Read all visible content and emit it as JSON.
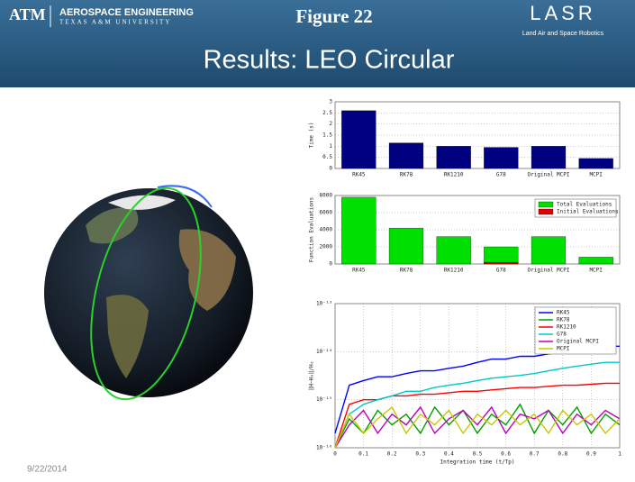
{
  "slide": {
    "logo": "ATM",
    "department": "AEROSPACE ENGINEERING",
    "university": "TEXAS A&M UNIVERSITY",
    "figure_label": "Figure 22",
    "title": "Results: LEO Circular",
    "lab_logo": "LASR",
    "lab_name": "Land Air and Space Robotics",
    "date": "9/22/2014"
  },
  "chart_data": [
    {
      "type": "bar",
      "ylabel": "Time (s)",
      "categories": [
        "RK45",
        "RK78",
        "RK1210",
        "G78",
        "Original MCPI",
        "MCPI"
      ],
      "values": [
        2.6,
        1.15,
        1.0,
        0.95,
        1.0,
        0.45
      ],
      "color": "#000080",
      "ylim": [
        0,
        3
      ],
      "yticks": [
        0,
        0.5,
        1,
        1.5,
        2,
        2.5,
        3
      ],
      "grid": true
    },
    {
      "type": "bar",
      "ylabel": "Function Evaluations",
      "categories": [
        "RK45",
        "RK78",
        "RK1210",
        "G78",
        "Original MCPI",
        "MCPI"
      ],
      "series": [
        {
          "name": "Total Evaluations",
          "color": "#00e000",
          "values": [
            7800,
            4200,
            3200,
            2000,
            3200,
            800
          ]
        },
        {
          "name": "Initial Evaluations",
          "color": "#e00000",
          "values": [
            0,
            0,
            0,
            200,
            0,
            0
          ]
        }
      ],
      "ylim": [
        0,
        8000
      ],
      "yticks": [
        0,
        2000,
        4000,
        6000,
        8000
      ],
      "grid": true,
      "legend": "top-right"
    },
    {
      "type": "line",
      "xlabel": "Integration time (t/Tp)",
      "ylabel": "‖H−H₀‖/H₀",
      "log_y": true,
      "x": [
        0,
        0.05,
        0.1,
        0.15,
        0.2,
        0.25,
        0.3,
        0.35,
        0.4,
        0.45,
        0.5,
        0.55,
        0.6,
        0.65,
        0.7,
        0.75,
        0.8,
        0.85,
        0.9,
        0.95,
        1
      ],
      "series": [
        {
          "name": "RK45",
          "color": "#0000ff",
          "values": [
            2e-16,
            2e-15,
            2.5e-15,
            3e-15,
            3e-15,
            3.5e-15,
            4e-15,
            4e-15,
            4.5e-15,
            5e-15,
            6e-15,
            7e-15,
            7e-15,
            8e-15,
            8e-15,
            9e-15,
            1e-14,
            1.1e-14,
            1.2e-14,
            1.3e-14,
            1.3e-14
          ]
        },
        {
          "name": "RK78",
          "color": "#00a000",
          "values": [
            1e-16,
            4e-16,
            2e-16,
            6e-16,
            3e-16,
            5e-16,
            2e-16,
            7e-16,
            3e-16,
            6e-16,
            2e-16,
            5e-16,
            3e-16,
            8e-16,
            2e-16,
            6e-16,
            3e-16,
            7e-16,
            2e-16,
            5e-16,
            3e-16
          ]
        },
        {
          "name": "RK1210",
          "color": "#ff0000",
          "values": [
            1e-16,
            8e-16,
            1e-15,
            1e-15,
            1.2e-15,
            1.2e-15,
            1.3e-15,
            1.3e-15,
            1.4e-15,
            1.5e-15,
            1.5e-15,
            1.6e-15,
            1.7e-15,
            1.8e-15,
            1.8e-15,
            1.9e-15,
            2e-15,
            2e-15,
            2.1e-15,
            2.2e-15,
            2.2e-15
          ]
        },
        {
          "name": "G78",
          "color": "#00c8c8",
          "values": [
            1e-16,
            5e-16,
            8e-16,
            1e-15,
            1.2e-15,
            1.5e-15,
            1.5e-15,
            1.8e-15,
            2e-15,
            2.2e-15,
            2.5e-15,
            2.8e-15,
            3e-15,
            3.2e-15,
            3.5e-15,
            4e-15,
            4.5e-15,
            5e-15,
            5.5e-15,
            6e-15,
            6e-15
          ]
        },
        {
          "name": "Original MCPI",
          "color": "#c000c0",
          "values": [
            1e-16,
            3e-16,
            6e-16,
            2e-16,
            5e-16,
            3e-16,
            7e-16,
            2e-16,
            4e-16,
            6e-16,
            3e-16,
            7e-16,
            2e-16,
            5e-16,
            4e-16,
            6e-16,
            2e-16,
            5e-16,
            3e-16,
            6e-16,
            4e-16
          ]
        },
        {
          "name": "MCPI",
          "color": "#c8c800",
          "values": [
            1e-16,
            5e-16,
            2e-16,
            4e-16,
            7e-16,
            2e-16,
            5e-16,
            3e-16,
            6e-16,
            2e-16,
            5e-16,
            3e-16,
            6e-16,
            3e-16,
            5e-16,
            2e-16,
            6e-16,
            3e-16,
            5e-16,
            2e-16,
            4e-16
          ]
        }
      ],
      "xlim": [
        0,
        1
      ],
      "xticks": [
        0,
        0.1,
        0.2,
        0.3,
        0.4,
        0.5,
        0.6,
        0.7,
        0.8,
        0.9,
        1
      ],
      "ylim": [
        1e-16,
        1e-13
      ],
      "yticks": [
        {
          "value": 1e-16,
          "label": "10⁻¹⁶"
        },
        {
          "value": 1e-15,
          "label": "10⁻¹⁵"
        },
        {
          "value": 1e-14,
          "label": "10⁻¹⁴"
        },
        {
          "value": 1e-13,
          "label": "10⁻¹³"
        }
      ],
      "grid": true,
      "legend": "top-right"
    }
  ]
}
